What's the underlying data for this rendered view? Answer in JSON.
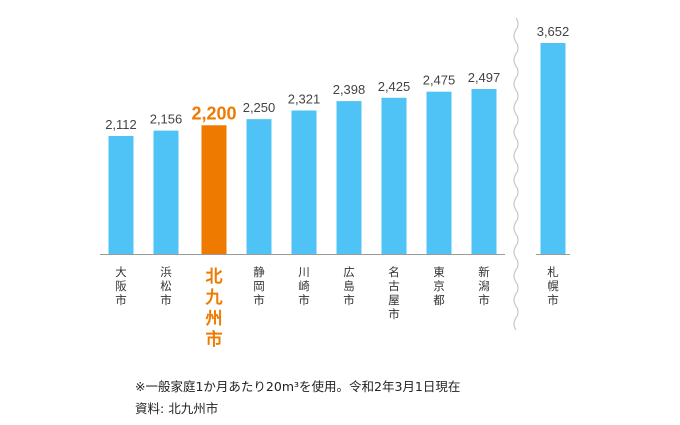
{
  "chart_data": {
    "type": "bar",
    "categories": [
      "大阪市",
      "浜松市",
      "北九州市",
      "静岡市",
      "川崎市",
      "広島市",
      "名古屋市",
      "東京都",
      "新潟市",
      "札幌市"
    ],
    "values": [
      2112,
      2156,
      2200,
      2250,
      2321,
      2398,
      2425,
      2475,
      2497,
      3652
    ],
    "value_labels": [
      "2,112",
      "2,156",
      "2,200",
      "2,250",
      "2,321",
      "2,398",
      "2,425",
      "2,475",
      "2,497",
      "3,652"
    ],
    "highlight_category": "北九州市",
    "axis_break_before": "札幌市",
    "ylim": [
      1800,
      2550
    ],
    "ylim_after_break": [
      3000,
      3700
    ],
    "title": "",
    "xlabel": "",
    "ylabel": "",
    "grid": false
  },
  "colors": {
    "bar": "#4fc3f5",
    "highlight": "#ef7a00",
    "baseline": "#9a9a9a",
    "break_line": "#c8c8c8"
  },
  "footnote": {
    "line1": "※一般家庭1か月あたり20m³を使用。令和2年3月1日現在",
    "source_label": "資料:",
    "source_value": "北九州市"
  }
}
